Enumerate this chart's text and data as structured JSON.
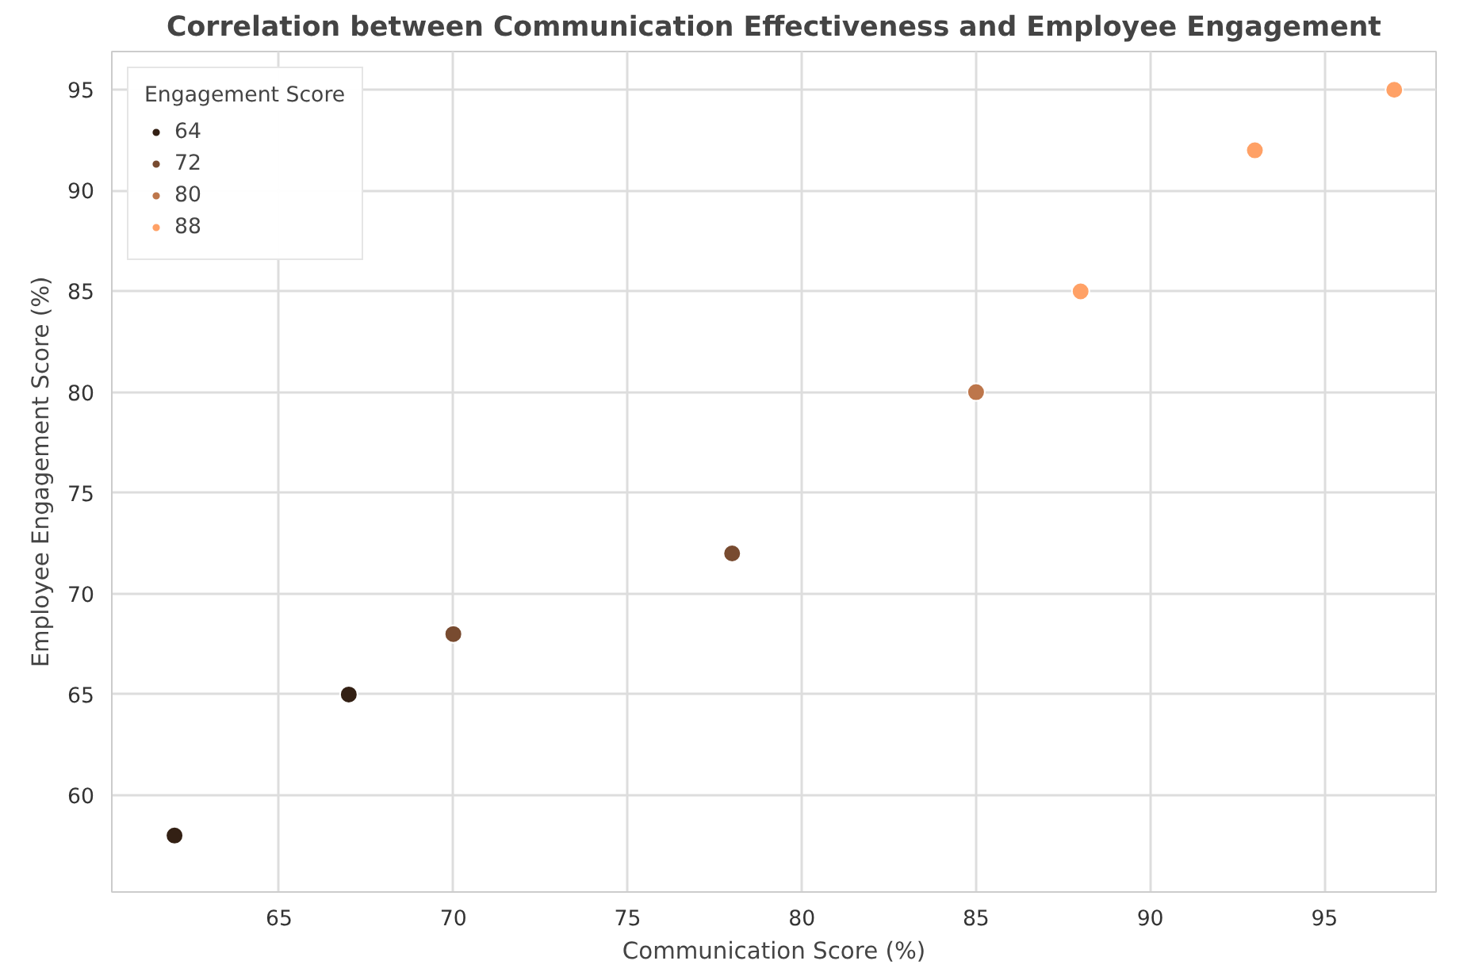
{
  "chart_data": {
    "type": "scatter",
    "title": "Correlation between Communication Effectiveness and Employee Engagement",
    "xlabel": "Communication Score (%)",
    "ylabel": "Employee Engagement Score (%)",
    "legend_title": "Engagement Score",
    "series": [
      {
        "name": "64",
        "color": "#332014",
        "x": [
          62,
          67
        ],
        "values": [
          58,
          65
        ]
      },
      {
        "name": "72",
        "color": "#784b30",
        "x": [
          70,
          78
        ],
        "values": [
          68,
          72
        ]
      },
      {
        "name": "80",
        "color": "#bd764b",
        "x": [
          85
        ],
        "values": [
          80
        ]
      },
      {
        "name": "88",
        "color": "#ffa166",
        "x": [
          88,
          93,
          97
        ],
        "values": [
          85,
          92,
          95
        ]
      }
    ],
    "xlim": [
      60.2,
      98.2
    ],
    "xticks": [
      65,
      70,
      75,
      80,
      85,
      90,
      95
    ],
    "ylim": [
      55.2,
      96.9
    ],
    "yticks": [
      60,
      65,
      70,
      75,
      80,
      85,
      90,
      95
    ],
    "grid": true,
    "legend": "top left",
    "marker": "circle"
  }
}
